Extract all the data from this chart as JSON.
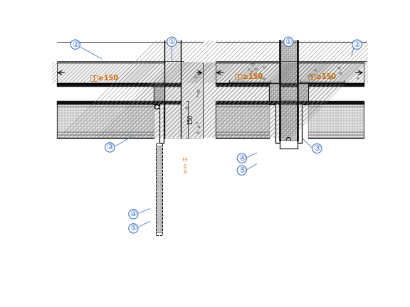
{
  "bg_color": "#ffffff",
  "line_color": "#000000",
  "orange_text": "#cc6600",
  "label_color": "#4472c4",
  "fig_width": 5.76,
  "fig_height": 4.32,
  "annotation_text": "翡包≥150",
  "dim_150": "150"
}
